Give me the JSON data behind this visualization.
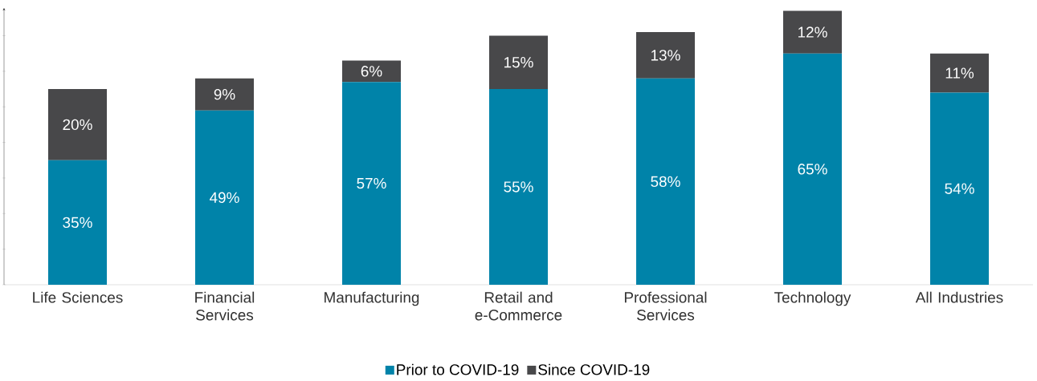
{
  "chart_data": {
    "type": "bar",
    "stacked": true,
    "categories": [
      "Life Sciences",
      "Financial Services",
      "Manufacturing",
      "Retail and e-Commerce",
      "Professional Services",
      "Technology",
      "All Industries"
    ],
    "series": [
      {
        "name": "Prior to COVID-19",
        "color": "#0083a9",
        "values": [
          35,
          49,
          57,
          55,
          58,
          65,
          54
        ],
        "value_labels": [
          "35%",
          "49%",
          "57%",
          "55%",
          "58%",
          "65%",
          "54%"
        ]
      },
      {
        "name": "Since COVID-19",
        "color": "#48484a",
        "values": [
          20,
          9,
          6,
          15,
          13,
          12,
          11
        ],
        "value_labels": [
          "20%",
          "9%",
          "6%",
          "15%",
          "13%",
          "12%",
          "11%"
        ]
      }
    ],
    "relative": false,
    "legend": "bottom",
    "grid": false
  }
}
